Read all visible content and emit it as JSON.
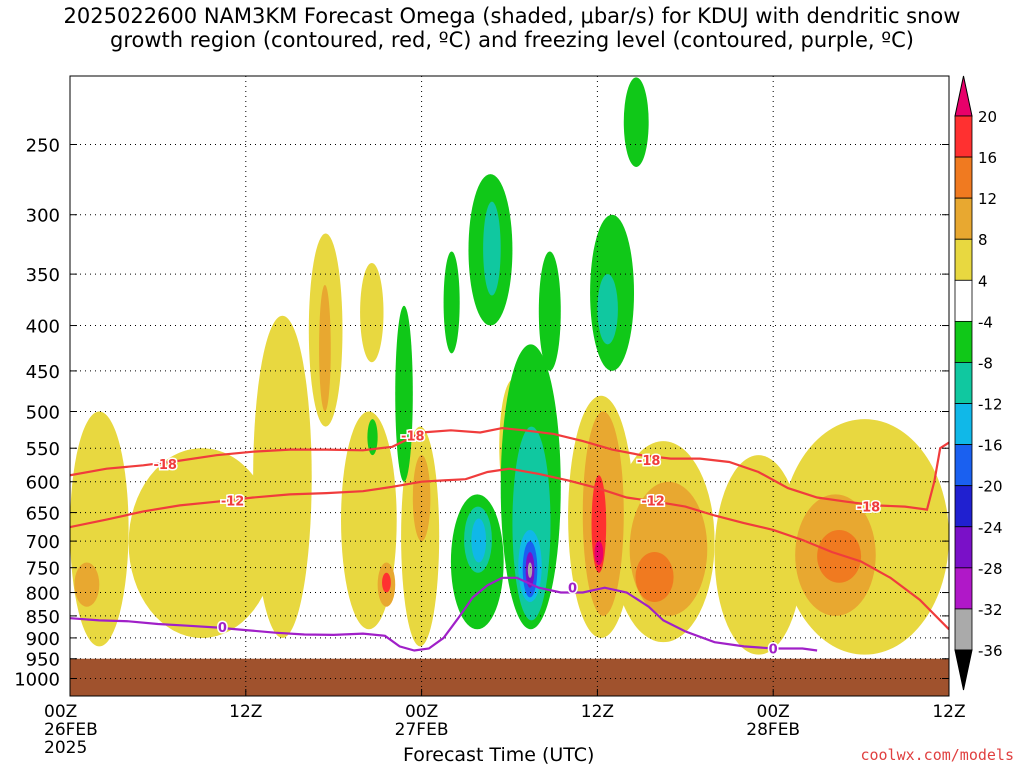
{
  "title": {
    "line1": "2025022600 NAM3KM Forecast Omega (shaded, μbar/s) for KDUJ with dendritic snow",
    "line2": "growth region (contoured, red, ºC) and freezing level (contoured, purple, ºC)"
  },
  "watermark": "coolwx.com/models",
  "chart_data": {
    "type": "heatmap",
    "title": "2025022600 NAM3KM Forecast Omega (shaded, μbar/s) for KDUJ with dendritic snow growth region (contoured, red, ºC) and freezing level (contoured, purple, ºC)",
    "xlabel": "Forecast Time (UTC)",
    "ylabel": "",
    "x_ticks": [
      {
        "hour": 0,
        "lines": [
          "00Z",
          "26FEB",
          "2025"
        ]
      },
      {
        "hour": 12,
        "lines": [
          "12Z"
        ]
      },
      {
        "hour": 24,
        "lines": [
          "00Z",
          "27FEB"
        ]
      },
      {
        "hour": 36,
        "lines": [
          "12Z"
        ]
      },
      {
        "hour": 48,
        "lines": [
          "00Z",
          "28FEB"
        ]
      },
      {
        "hour": 60,
        "lines": [
          "12Z"
        ]
      }
    ],
    "xlim_hours": [
      0,
      60
    ],
    "y_ticks": [
      250,
      300,
      350,
      400,
      450,
      500,
      550,
      600,
      650,
      700,
      750,
      800,
      850,
      900,
      950,
      1000
    ],
    "ylim_hPa": [
      200,
      1050
    ],
    "y_scale": "log-pressure",
    "grid": "dotted",
    "ground_level_hPa": 950,
    "colorbar": {
      "labels": [
        "20",
        "16",
        "12",
        "8",
        "4",
        "-4",
        "-8",
        "-12",
        "-16",
        "-20",
        "-24",
        "-28",
        "-32",
        "-36"
      ],
      "colors": [
        "#e8006a",
        "#ff3030",
        "#f07a20",
        "#e8a830",
        "#e8d840",
        "#ffffff",
        "#10c818",
        "#10c8a0",
        "#10b8e8",
        "#1a60f0",
        "#2020d0",
        "#7a10c8",
        "#b018c8",
        "#aaaaaa",
        "#000000"
      ]
    },
    "shaded_features": [
      {
        "color": "#e8d840",
        "hour_range": [
          0,
          4
        ],
        "p_range": [
          500,
          920
        ]
      },
      {
        "color": "#e8d840",
        "hour_range": [
          4,
          14
        ],
        "p_range": [
          550,
          900
        ]
      },
      {
        "color": "#e8d840",
        "hour_range": [
          12.5,
          16.5
        ],
        "p_range": [
          390,
          900
        ]
      },
      {
        "color": "#e8d840",
        "hour_range": [
          16.3,
          18.6
        ],
        "p_range": [
          315,
          520
        ]
      },
      {
        "color": "#e8d840",
        "hour_range": [
          19.8,
          21.4
        ],
        "p_range": [
          340,
          440
        ]
      },
      {
        "color": "#e8d840",
        "hour_range": [
          18.5,
          22.3
        ],
        "p_range": [
          500,
          880
        ]
      },
      {
        "color": "#e8d840",
        "hour_range": [
          22.6,
          25.2
        ],
        "p_range": [
          520,
          920
        ]
      },
      {
        "color": "#e8d840",
        "hour_range": [
          29.3,
          31.2
        ],
        "p_range": [
          460,
          650
        ]
      },
      {
        "color": "#e8d840",
        "hour_range": [
          34.0,
          38.5
        ],
        "p_range": [
          480,
          900
        ]
      },
      {
        "color": "#e8d840",
        "hour_range": [
          37.0,
          44.0
        ],
        "p_range": [
          540,
          910
        ]
      },
      {
        "color": "#e8d840",
        "hour_range": [
          44.0,
          50.0
        ],
        "p_range": [
          560,
          940
        ]
      },
      {
        "color": "#e8d840",
        "hour_range": [
          48.5,
          60.0
        ],
        "p_range": [
          510,
          940
        ]
      },
      {
        "color": "#e8a830",
        "hour_range": [
          0.3,
          2.0
        ],
        "p_range": [
          740,
          830
        ]
      },
      {
        "color": "#e8a830",
        "hour_range": [
          17.0,
          17.8
        ],
        "p_range": [
          360,
          500
        ]
      },
      {
        "color": "#e8a830",
        "hour_range": [
          21.0,
          22.2
        ],
        "p_range": [
          740,
          830
        ]
      },
      {
        "color": "#e8a830",
        "hour_range": [
          23.4,
          24.6
        ],
        "p_range": [
          560,
          700
        ]
      },
      {
        "color": "#e8a830",
        "hour_range": [
          35.0,
          37.8
        ],
        "p_range": [
          500,
          850
        ]
      },
      {
        "color": "#e8a830",
        "hour_range": [
          38.2,
          43.5
        ],
        "p_range": [
          600,
          850
        ]
      },
      {
        "color": "#e8a830",
        "hour_range": [
          49.5,
          55.0
        ],
        "p_range": [
          620,
          850
        ]
      },
      {
        "color": "#f07a20",
        "hour_range": [
          38.6,
          41.2
        ],
        "p_range": [
          720,
          820
        ]
      },
      {
        "color": "#f07a20",
        "hour_range": [
          51.0,
          54.0
        ],
        "p_range": [
          680,
          780
        ]
      },
      {
        "color": "#ff3030",
        "hour_range": [
          21.3,
          21.9
        ],
        "p_range": [
          760,
          800
        ]
      },
      {
        "color": "#ff3030",
        "hour_range": [
          35.6,
          36.6
        ],
        "p_range": [
          590,
          760
        ]
      },
      {
        "color": "#e8006a",
        "hour_range": [
          35.8,
          36.4
        ],
        "p_range": [
          700,
          745
        ]
      },
      {
        "color": "#10c818",
        "hour_range": [
          25.5,
          26.6
        ],
        "p_range": [
          330,
          430
        ]
      },
      {
        "color": "#10c818",
        "hour_range": [
          27.2,
          30.2
        ],
        "p_range": [
          270,
          400
        ]
      },
      {
        "color": "#10c818",
        "hour_range": [
          32.0,
          33.5
        ],
        "p_range": [
          330,
          450
        ]
      },
      {
        "color": "#10c818",
        "hour_range": [
          35.5,
          38.5
        ],
        "p_range": [
          300,
          450
        ]
      },
      {
        "color": "#10c818",
        "hour_range": [
          37.8,
          39.5
        ],
        "p_range": [
          210,
          265
        ]
      },
      {
        "color": "#10c818",
        "hour_range": [
          22.2,
          23.4
        ],
        "p_range": [
          380,
          600
        ]
      },
      {
        "color": "#10c818",
        "hour_range": [
          26.0,
          29.6
        ],
        "p_range": [
          620,
          880
        ]
      },
      {
        "color": "#10c818",
        "hour_range": [
          29.4,
          33.5
        ],
        "p_range": [
          420,
          880
        ]
      },
      {
        "color": "#10c818",
        "hour_range": [
          20.3,
          21.0
        ],
        "p_range": [
          510,
          560
        ]
      },
      {
        "color": "#10c8a0",
        "hour_range": [
          28.2,
          29.4
        ],
        "p_range": [
          290,
          370
        ]
      },
      {
        "color": "#10c8a0",
        "hour_range": [
          36.0,
          37.4
        ],
        "p_range": [
          350,
          420
        ]
      },
      {
        "color": "#10c8a0",
        "hour_range": [
          26.9,
          28.8
        ],
        "p_range": [
          640,
          760
        ]
      },
      {
        "color": "#10c8a0",
        "hour_range": [
          30.2,
          32.8
        ],
        "p_range": [
          520,
          860
        ]
      },
      {
        "color": "#10b8e8",
        "hour_range": [
          27.4,
          28.4
        ],
        "p_range": [
          660,
          740
        ]
      },
      {
        "color": "#10b8e8",
        "hour_range": [
          30.6,
          32.2
        ],
        "p_range": [
          680,
          820
        ]
      },
      {
        "color": "#1a60f0",
        "hour_range": [
          30.9,
          31.9
        ],
        "p_range": [
          700,
          810
        ]
      },
      {
        "color": "#7a10c8",
        "hour_range": [
          31.1,
          31.7
        ],
        "p_range": [
          720,
          790
        ]
      },
      {
        "color": "#aaaaaa",
        "hour_range": [
          31.25,
          31.55
        ],
        "p_range": [
          740,
          770
        ]
      }
    ],
    "series": [
      {
        "name": "-18",
        "color": "#f03c3c",
        "points": [
          [
            0,
            590
          ],
          [
            2.5,
            580
          ],
          [
            5,
            575
          ],
          [
            7.5,
            568
          ],
          [
            10,
            560
          ],
          [
            12.5,
            555
          ],
          [
            15,
            552
          ],
          [
            17.5,
            552
          ],
          [
            20,
            553
          ],
          [
            22,
            548
          ],
          [
            24,
            528
          ],
          [
            26,
            525
          ],
          [
            28,
            528
          ],
          [
            29.5,
            522
          ],
          [
            31,
            525
          ],
          [
            33,
            530
          ],
          [
            35,
            540
          ],
          [
            37,
            552
          ],
          [
            39,
            560
          ],
          [
            41,
            565
          ],
          [
            43,
            565
          ],
          [
            45,
            570
          ],
          [
            47,
            585
          ],
          [
            49,
            610
          ],
          [
            51,
            625
          ],
          [
            53,
            632
          ],
          [
            55,
            638
          ],
          [
            57,
            640
          ],
          [
            58.5,
            645
          ],
          [
            59,
            600
          ],
          [
            59.4,
            550
          ],
          [
            60,
            542
          ]
        ],
        "labels": [
          {
            "text": "-18",
            "at": [
              6.5,
              573
            ]
          },
          {
            "text": "-18",
            "at": [
              23.4,
              532
            ]
          },
          {
            "text": "-18",
            "at": [
              39.5,
              567
            ]
          },
          {
            "text": "-18",
            "at": [
              54.5,
              640
            ]
          }
        ]
      },
      {
        "name": "-12",
        "color": "#f03c3c",
        "points": [
          [
            0,
            675
          ],
          [
            2.5,
            662
          ],
          [
            5,
            648
          ],
          [
            7.5,
            638
          ],
          [
            10,
            632
          ],
          [
            12.5,
            625
          ],
          [
            15,
            620
          ],
          [
            17.5,
            618
          ],
          [
            20,
            615
          ],
          [
            22,
            608
          ],
          [
            24,
            600
          ],
          [
            25.5,
            598
          ],
          [
            27,
            596
          ],
          [
            28.5,
            585
          ],
          [
            30,
            580
          ],
          [
            32,
            588
          ],
          [
            34,
            598
          ],
          [
            36,
            610
          ],
          [
            38,
            625
          ],
          [
            40,
            632
          ],
          [
            42,
            640
          ],
          [
            44,
            655
          ],
          [
            46,
            668
          ],
          [
            48,
            680
          ],
          [
            50,
            698
          ],
          [
            52,
            720
          ],
          [
            54,
            738
          ],
          [
            56,
            770
          ],
          [
            58,
            815
          ],
          [
            60,
            880
          ]
        ],
        "labels": [
          {
            "text": "-12",
            "at": [
              11.1,
              630
            ]
          },
          {
            "text": "-12",
            "at": [
              39.8,
              630
            ]
          }
        ]
      },
      {
        "name": "0",
        "color": "#a020c8",
        "points": [
          [
            0,
            855
          ],
          [
            2,
            860
          ],
          [
            4,
            862
          ],
          [
            6,
            868
          ],
          [
            8,
            872
          ],
          [
            10,
            876
          ],
          [
            12,
            882
          ],
          [
            14,
            888
          ],
          [
            16,
            892
          ],
          [
            18,
            893
          ],
          [
            20,
            890
          ],
          [
            21.5,
            895
          ],
          [
            22.5,
            920
          ],
          [
            23.5,
            930
          ],
          [
            24.5,
            925
          ],
          [
            25.5,
            900
          ],
          [
            26.5,
            855
          ],
          [
            27.5,
            810
          ],
          [
            28.5,
            785
          ],
          [
            29.5,
            770
          ],
          [
            30.5,
            770
          ],
          [
            32,
            790
          ],
          [
            33.5,
            800
          ],
          [
            35,
            800
          ],
          [
            36.5,
            790
          ],
          [
            38,
            800
          ],
          [
            39.5,
            830
          ],
          [
            40.5,
            860
          ],
          [
            42,
            885
          ],
          [
            44,
            910
          ],
          [
            46,
            920
          ],
          [
            48,
            925
          ],
          [
            50,
            925
          ],
          [
            51,
            930
          ]
        ],
        "labels": [
          {
            "text": "0",
            "at": [
              10.4,
              875
            ]
          },
          {
            "text": "0",
            "at": [
              34.3,
              790
            ]
          },
          {
            "text": "0",
            "at": [
              48.0,
              925
            ]
          }
        ]
      }
    ]
  }
}
